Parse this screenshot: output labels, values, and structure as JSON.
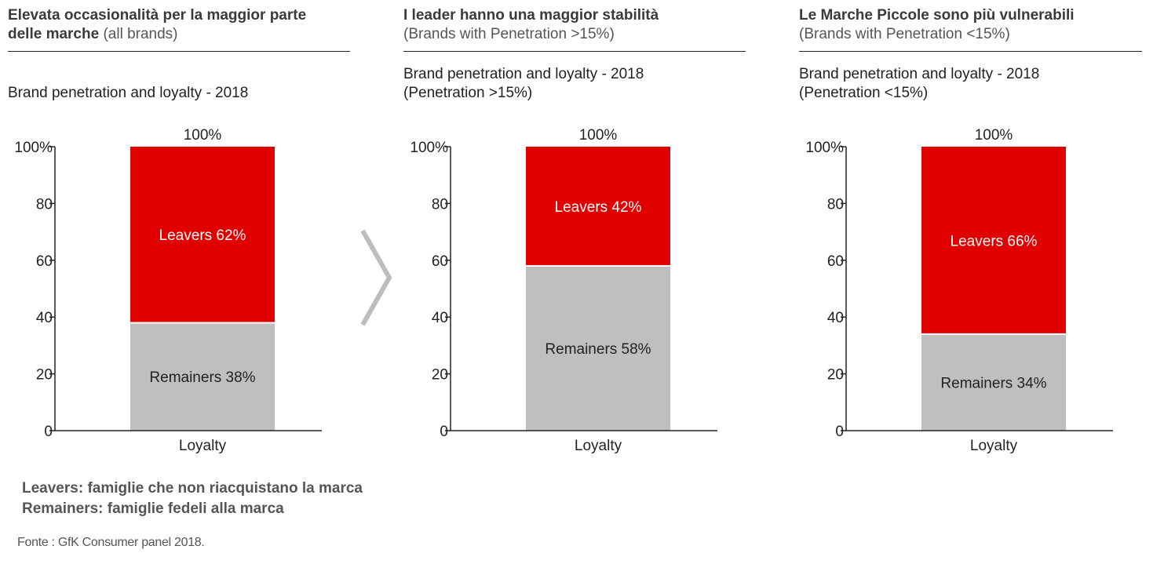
{
  "panels": [
    {
      "header_bold": "Elevata occasionalità per la maggior parte delle marche",
      "header_light": "(all brands)",
      "chart_title_line1": "Brand penetration and loyalty - 2018",
      "chart_title_line2": ""
    },
    {
      "header_bold": "I leader hanno una maggior stabilità",
      "header_light": "(Brands with  Penetration >15%)",
      "chart_title_line1": "Brand penetration and loyalty - 2018",
      "chart_title_line2": "(Penetration >15%)"
    },
    {
      "header_bold": "Le Marche Piccole sono più vulnerabili",
      "header_light": "(Brands with  Penetration <15%)",
      "chart_title_line1": "Brand penetration and loyalty - 2018",
      "chart_title_line2": "(Penetration <15%)"
    }
  ],
  "chart_data": [
    {
      "type": "bar",
      "stacked": true,
      "title": "Brand penetration and loyalty - 2018",
      "categories": [
        "Loyalty"
      ],
      "total_label": "100%",
      "yticks": [
        "0",
        "20",
        "40",
        "60",
        "80",
        "100%"
      ],
      "ylim": [
        0,
        100
      ],
      "series": [
        {
          "name": "Remainers",
          "values": [
            38
          ],
          "label": "Remainers 38%",
          "color": "#bfbfbf"
        },
        {
          "name": "Leavers",
          "values": [
            62
          ],
          "label": "Leavers 62%",
          "color": "#e00000"
        }
      ]
    },
    {
      "type": "bar",
      "stacked": true,
      "title": "Brand penetration and loyalty - 2018 (Penetration >15%)",
      "categories": [
        "Loyalty"
      ],
      "total_label": "100%",
      "yticks": [
        "0",
        "20",
        "40",
        "60",
        "80",
        "100%"
      ],
      "ylim": [
        0,
        100
      ],
      "series": [
        {
          "name": "Remainers",
          "values": [
            58
          ],
          "label": "Remainers 58%",
          "color": "#bfbfbf"
        },
        {
          "name": "Leavers",
          "values": [
            42
          ],
          "label": "Leavers 42%",
          "color": "#e00000"
        }
      ]
    },
    {
      "type": "bar",
      "stacked": true,
      "title": "Brand penetration and loyalty - 2018 (Penetration <15%)",
      "categories": [
        "Loyalty"
      ],
      "total_label": "100%",
      "yticks": [
        "0",
        "20",
        "40",
        "60",
        "80",
        "100%"
      ],
      "ylim": [
        0,
        100
      ],
      "series": [
        {
          "name": "Remainers",
          "values": [
            34
          ],
          "label": "Remainers 34%",
          "color": "#bfbfbf"
        },
        {
          "name": "Leavers",
          "values": [
            66
          ],
          "label": "Leavers 66%",
          "color": "#e00000"
        }
      ]
    }
  ],
  "legend": {
    "leavers": "Leavers: famiglie che non riacquistano la marca",
    "remainers": "Remainers: famiglie fedeli alla marca"
  },
  "source": "Fonte : GfK Consumer panel 2018.",
  "chevron_icon": "chevron-right-icon",
  "colors": {
    "leavers": "#e00000",
    "remainers": "#bfbfbf"
  }
}
